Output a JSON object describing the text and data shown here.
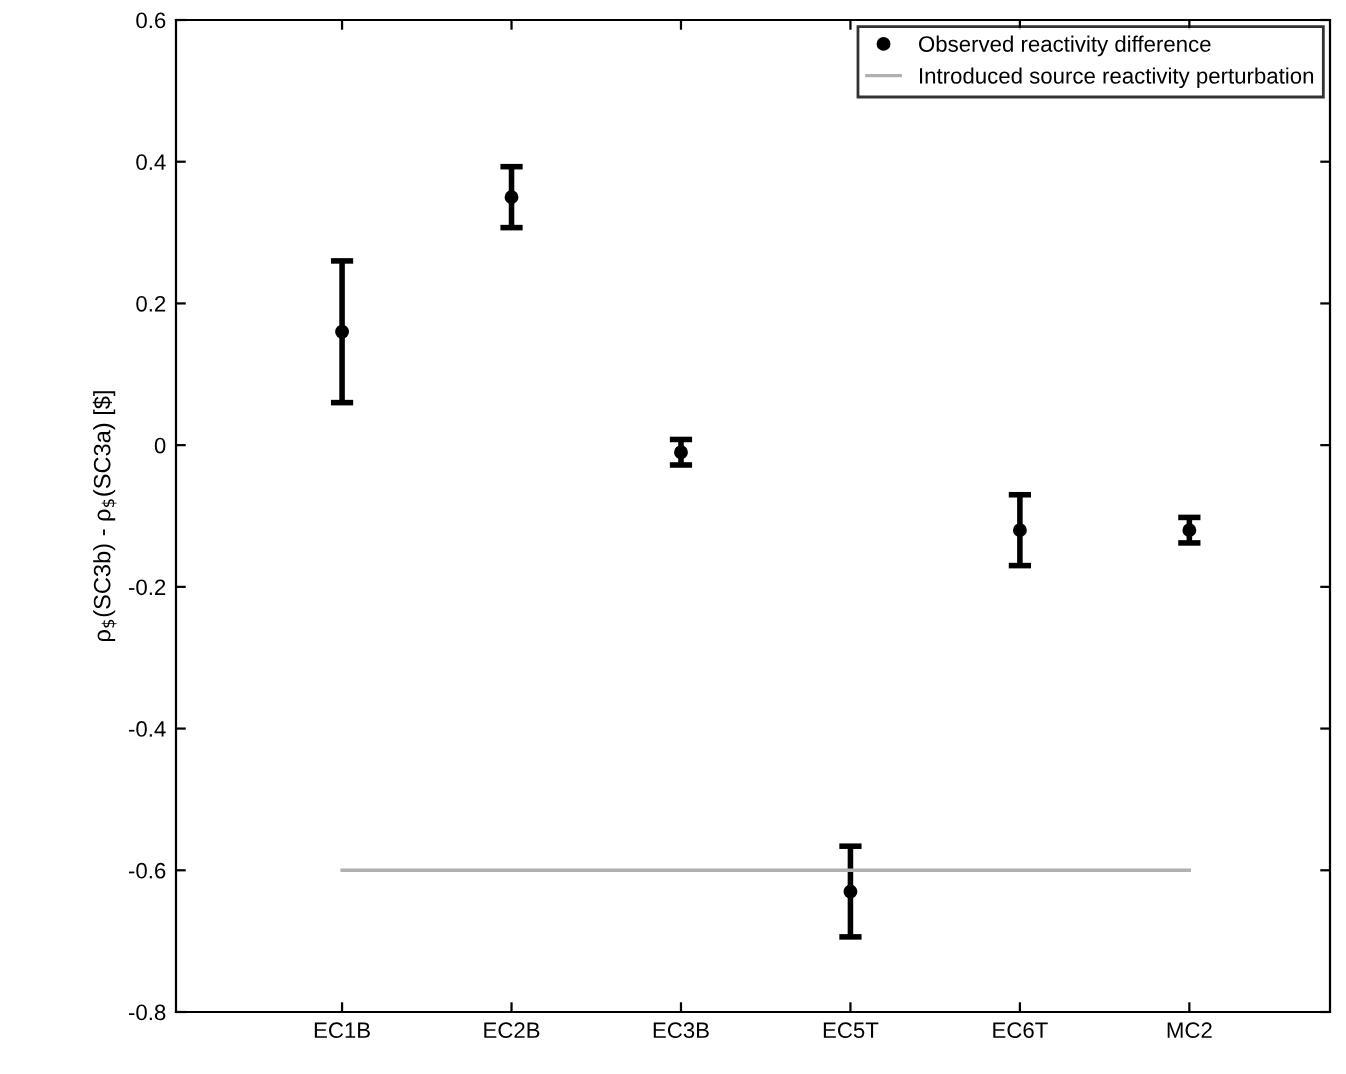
{
  "chart_data": {
    "type": "scatter",
    "ylabel": "ρ$_{$}$(SC3b) - ρ$_{$}$(SC3a) [$]",
    "categories": [
      "EC1B",
      "EC2B",
      "EC3B",
      "EC5T",
      "EC6T",
      "MC2"
    ],
    "series": [
      {
        "name": "Observed reactivity difference",
        "color": "#000000",
        "marker": "circle",
        "values": [
          0.16,
          0.35,
          -0.01,
          -0.63,
          -0.12,
          -0.12
        ],
        "errors": [
          0.1,
          0.043,
          0.018,
          0.064,
          0.05,
          0.018
        ]
      },
      {
        "name": "Introduced source reactivity perturbation",
        "type": "line",
        "color": "#b0b0b0",
        "marker": "none",
        "line_style": "solid",
        "values": [
          -0.6,
          -0.6,
          -0.6,
          -0.6,
          -0.6,
          -0.6
        ]
      }
    ],
    "ylim": [
      -0.8,
      0.6
    ],
    "yticks": [
      -0.8,
      -0.6,
      -0.4,
      -0.2,
      0,
      0.2,
      0.4,
      0.6
    ],
    "grid": false,
    "legend": "top right"
  }
}
